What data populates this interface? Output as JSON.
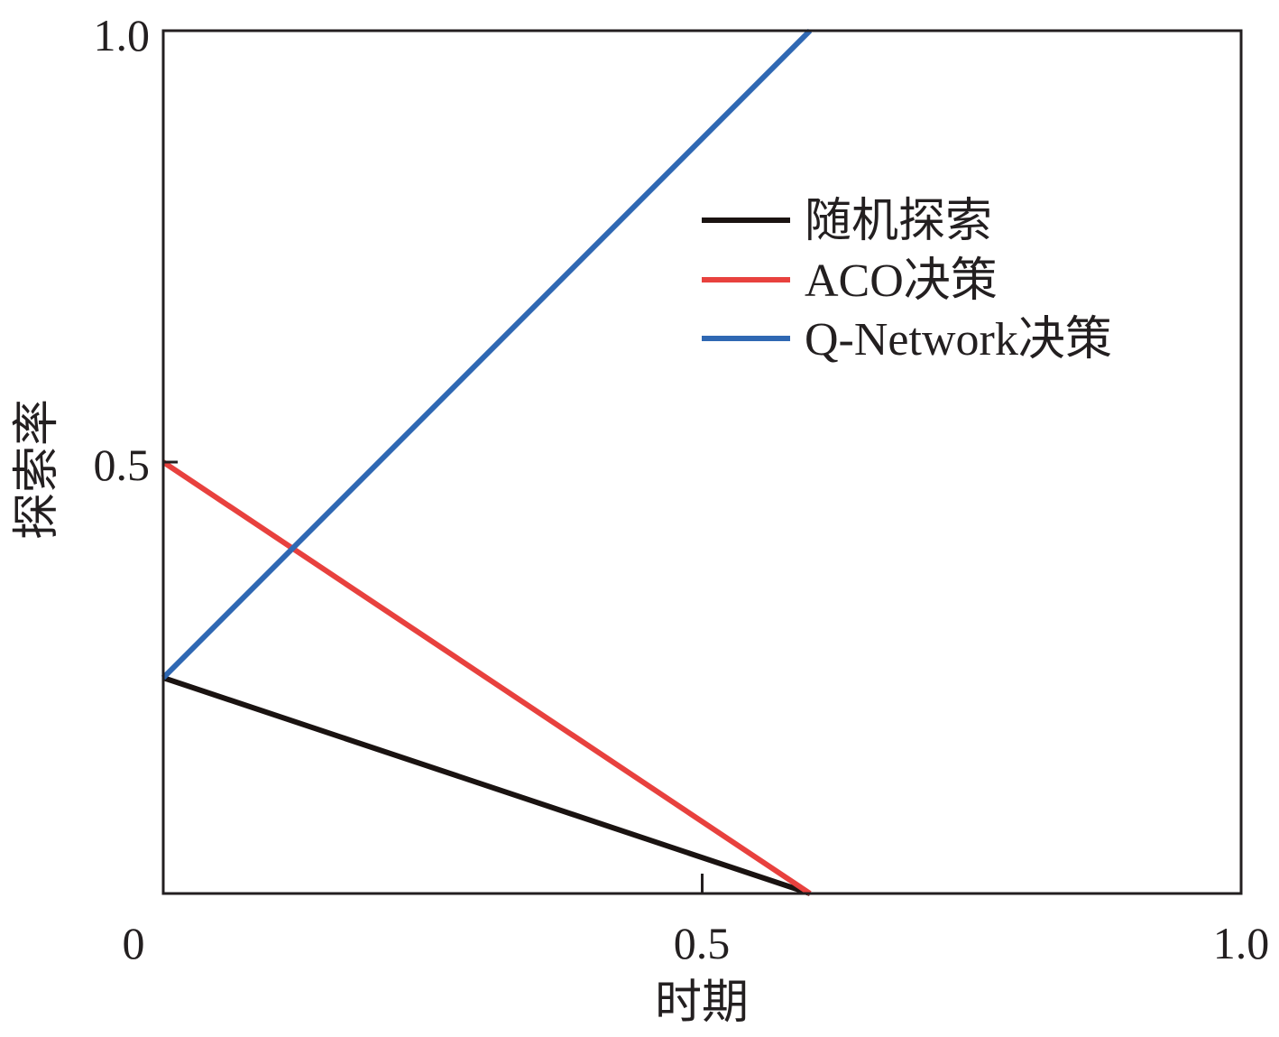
{
  "chart_data": {
    "type": "line",
    "title": "",
    "xlabel": "时期",
    "ylabel": "探索率",
    "xlim": [
      0,
      1.0
    ],
    "ylim": [
      0,
      1.0
    ],
    "x_ticks": [
      "0",
      "0.5",
      "1.0"
    ],
    "y_ticks": [
      "0.5",
      "1.0"
    ],
    "grid": false,
    "legend_position": "top-right",
    "series": [
      {
        "name": "随机探索",
        "color": "#1a1311",
        "x": [
          0,
          0.6
        ],
        "y": [
          0.25,
          0
        ]
      },
      {
        "name": "ACO决策",
        "color": "#e8413e",
        "x": [
          0,
          0.6
        ],
        "y": [
          0.5,
          0
        ]
      },
      {
        "name": "Q-Network决策",
        "color": "#2f68b3",
        "x": [
          0,
          0.6
        ],
        "y": [
          0.25,
          1.0
        ]
      }
    ]
  }
}
